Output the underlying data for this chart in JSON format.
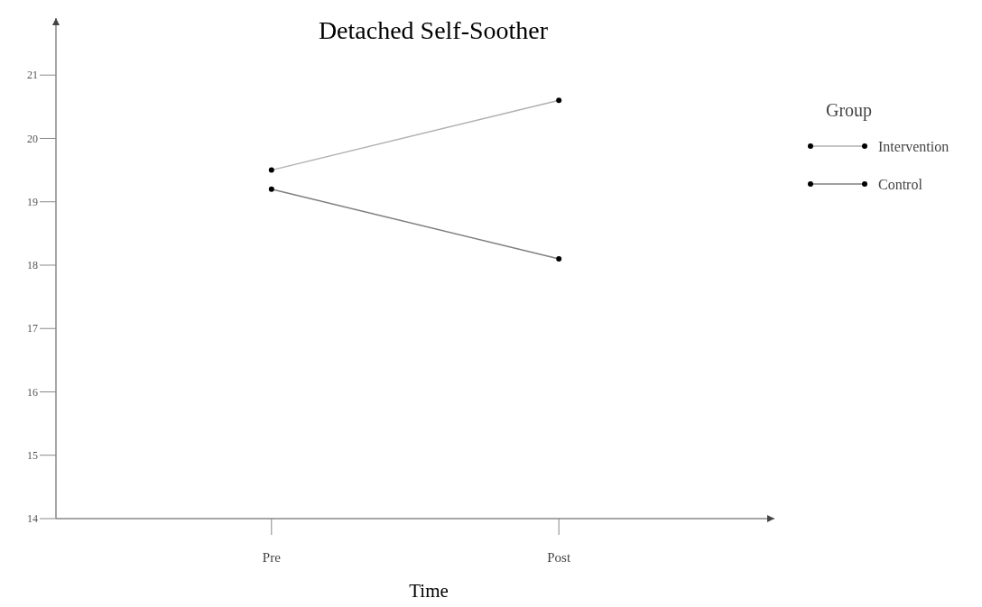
{
  "chart_data": {
    "type": "line",
    "title": "Detached Self-Soother",
    "xlabel": "Time",
    "legend_title": "Group",
    "categories": [
      "Pre",
      "Post"
    ],
    "series": [
      {
        "name": "Intervention",
        "color": "#b0b0b0",
        "values": [
          19.5,
          20.6
        ]
      },
      {
        "name": "Control",
        "color": "#808080",
        "values": [
          19.2,
          18.1
        ]
      }
    ],
    "ylim": [
      14,
      21.9
    ],
    "yticks": [
      14,
      15,
      16,
      17,
      18,
      19,
      20,
      21
    ],
    "marker": "circle",
    "legend": "right",
    "grid": false
  }
}
